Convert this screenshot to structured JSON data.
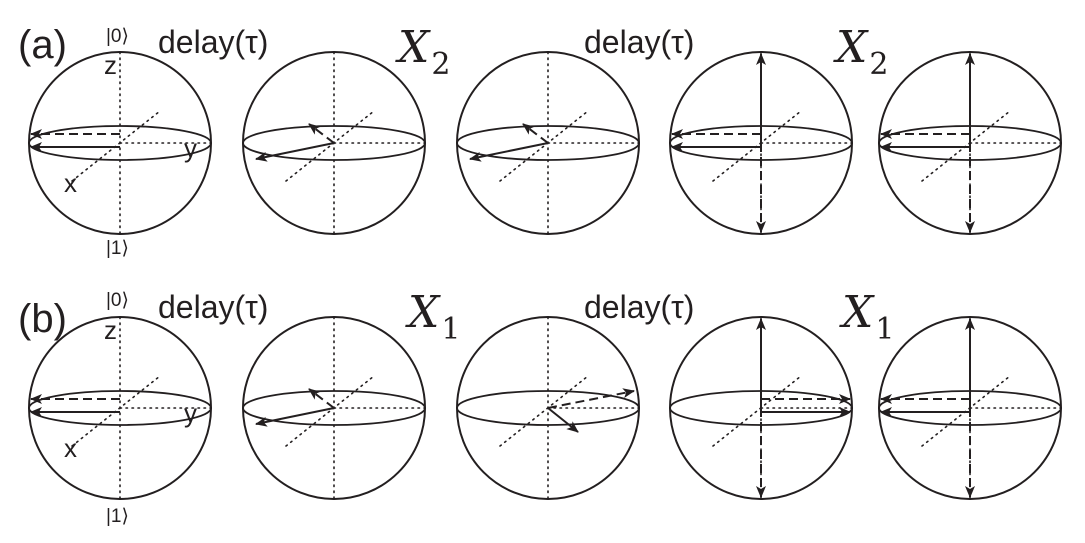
{
  "panels": [
    {
      "label": "(a)",
      "ket_top": "|0⟩",
      "ket_bottom": "|1⟩",
      "axis_z": "z",
      "axis_y": "y",
      "axis_x": "x",
      "operations": [
        {
          "type": "text",
          "text": "delay(τ)"
        },
        {
          "type": "gate",
          "symbol": "X",
          "subscript": "2"
        },
        {
          "type": "text",
          "text": "delay(τ)"
        },
        {
          "type": "gate",
          "symbol": "X",
          "subscript": "2"
        }
      ]
    },
    {
      "label": "(b)",
      "ket_top": "|0⟩",
      "ket_bottom": "|1⟩",
      "axis_z": "z",
      "axis_y": "y",
      "axis_x": "x",
      "operations": [
        {
          "type": "text",
          "text": "delay(τ)"
        },
        {
          "type": "gate",
          "symbol": "X",
          "subscript": "1"
        },
        {
          "type": "text",
          "text": "delay(τ)"
        },
        {
          "type": "gate",
          "symbol": "X",
          "subscript": "1"
        }
      ]
    }
  ],
  "colors": {
    "ink": "#231f20"
  }
}
